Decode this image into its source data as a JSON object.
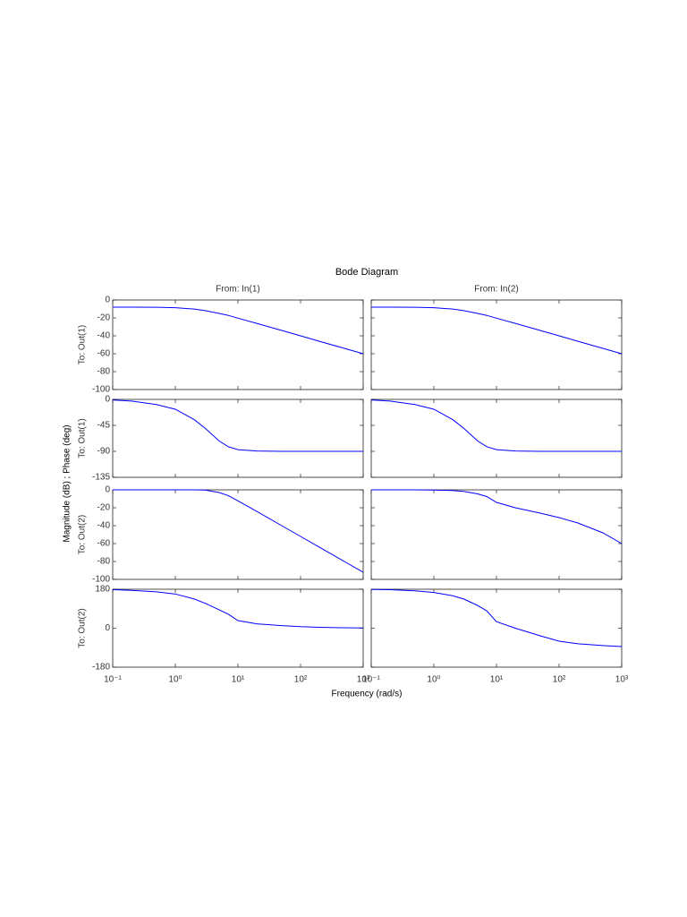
{
  "chart_data": {
    "type": "line",
    "title": "Bode Diagram",
    "xlabel": "Frequency  (rad/s)",
    "ylabel": "Magnitude (dB) ; Phase (deg)",
    "columns": [
      "From: In(1)",
      "From: In(2)"
    ],
    "xscale": "log",
    "xlim": [
      0.1,
      1000
    ],
    "xticks": [
      {
        "value": 0.1,
        "label": "10⁻¹"
      },
      {
        "value": 1,
        "label": "10⁰"
      },
      {
        "value": 10,
        "label": "10¹"
      },
      {
        "value": 100,
        "label": "10²"
      },
      {
        "value": 1000,
        "label": "10³"
      }
    ],
    "x": [
      0.1,
      0.2,
      0.5,
      1,
      2,
      3,
      5,
      7,
      10,
      20,
      50,
      100,
      200,
      500,
      1000
    ],
    "rows": [
      {
        "label": "To: Out(1)",
        "ylim": [
          -100,
          0
        ],
        "yticks": [
          0,
          -20,
          -40,
          -60,
          -80,
          -100
        ],
        "series": [
          {
            "color": "#0000ff",
            "values": [
              -8.0,
              -8.03,
              -8.17,
              -8.64,
              -10.1,
              -11.9,
              -15.0,
              -17.2,
              -20.3,
              -26.1,
              -34.0,
              -40.0,
              -46.1,
              -54.0,
              -60.0
            ]
          },
          {
            "color": "#0000ff",
            "values": [
              -8.0,
              -8.03,
              -8.17,
              -8.64,
              -10.1,
              -11.9,
              -15.0,
              -17.2,
              -20.3,
              -26.1,
              -34.0,
              -40.0,
              -46.1,
              -54.0,
              -60.0
            ]
          }
        ]
      },
      {
        "label": "To: Out(1)",
        "ylim": [
          -135,
          0
        ],
        "yticks": [
          0,
          -45,
          -90,
          -135
        ],
        "series": [
          {
            "color": "#0000ff",
            "values": [
              -1,
              -3,
              -9,
              -17,
              -35,
              -50,
              -72,
              -82,
              -87,
              -89.5,
              -90,
              -90,
              -90,
              -90,
              -90
            ]
          },
          {
            "color": "#0000ff",
            "values": [
              -1,
              -3,
              -9,
              -17,
              -35,
              -50,
              -72,
              -82,
              -87,
              -89.5,
              -90,
              -90,
              -90,
              -90,
              -90
            ]
          }
        ]
      },
      {
        "label": "To: Out(2)",
        "ylim": [
          -100,
          0
        ],
        "yticks": [
          0,
          -20,
          -40,
          -60,
          -80,
          -100
        ],
        "series": [
          {
            "color": "#0000ff",
            "values": [
              0,
              0,
              0,
              -0.003,
              -0.05,
              -0.26,
              -3.0,
              -6.4,
              -12.3,
              -24.1,
              -40.0,
              -52.0,
              -64.1,
              -80.0,
              -92.0
            ]
          },
          {
            "color": "#0000ff",
            "values": [
              0,
              0,
              0,
              -0.2,
              -0.8,
              -1.8,
              -4.5,
              -7.5,
              -14,
              -20,
              -26,
              -31,
              -37,
              -48,
              -60
            ]
          }
        ]
      },
      {
        "label": "To: Out(2)",
        "ylim": [
          -180,
          180
        ],
        "yticks": [
          180,
          0,
          -180
        ],
        "series": [
          {
            "color": "#0000ff",
            "values": [
              178,
              175,
              168,
              158,
              135,
              115,
              85,
              65,
              35,
              20,
              12,
              7,
              4,
              2,
              1
            ]
          },
          {
            "color": "#0000ff",
            "values": [
              179,
              178,
              173,
              165,
              150,
              135,
              105,
              80,
              30,
              0,
              -35,
              -60,
              -72,
              -80,
              -85
            ]
          }
        ]
      }
    ]
  }
}
